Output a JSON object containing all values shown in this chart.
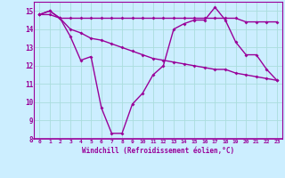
{
  "line1_x": [
    0,
    1,
    2,
    3,
    4,
    5,
    6,
    7,
    8,
    9,
    10,
    11,
    12,
    13,
    14,
    15,
    16,
    17,
    18,
    19,
    20,
    21,
    22,
    23
  ],
  "line1_y": [
    14.8,
    15.0,
    14.6,
    14.6,
    14.6,
    14.6,
    14.6,
    14.6,
    14.6,
    14.6,
    14.6,
    14.6,
    14.6,
    14.6,
    14.6,
    14.6,
    14.6,
    14.6,
    14.6,
    14.6,
    14.4,
    14.4,
    14.4,
    14.4
  ],
  "line2_x": [
    0,
    1,
    2,
    3,
    4,
    5,
    6,
    7,
    8,
    9,
    10,
    11,
    12,
    13,
    14,
    15,
    16,
    17,
    18,
    19,
    20,
    21,
    22,
    23
  ],
  "line2_y": [
    14.8,
    14.8,
    14.6,
    14.0,
    13.8,
    13.5,
    13.4,
    13.2,
    13.0,
    12.8,
    12.6,
    12.4,
    12.3,
    12.2,
    12.1,
    12.0,
    11.9,
    11.8,
    11.8,
    11.6,
    11.5,
    11.4,
    11.3,
    11.2
  ],
  "line3_x": [
    0,
    1,
    2,
    3,
    4,
    5,
    6,
    7,
    8,
    9,
    10,
    11,
    12,
    13,
    14,
    15,
    16,
    17,
    18,
    19,
    20,
    21,
    22,
    23
  ],
  "line3_y": [
    14.8,
    15.0,
    14.6,
    13.6,
    12.3,
    12.5,
    9.7,
    8.3,
    8.3,
    9.9,
    10.5,
    11.5,
    12.0,
    14.0,
    14.3,
    14.5,
    14.5,
    15.2,
    14.5,
    13.3,
    12.6,
    12.6,
    11.8,
    11.2
  ],
  "color": "#990099",
  "bg_color": "#cceeff",
  "grid_color": "#aadddd",
  "xlabel": "Windchill (Refroidissement éolien,°C)",
  "xlim_min": -0.5,
  "xlim_max": 23.5,
  "ylim_min": 8,
  "ylim_max": 15.5,
  "yticks": [
    8,
    9,
    10,
    11,
    12,
    13,
    14,
    15
  ],
  "xticks": [
    0,
    1,
    2,
    3,
    4,
    5,
    6,
    7,
    8,
    9,
    10,
    11,
    12,
    13,
    14,
    15,
    16,
    17,
    18,
    19,
    20,
    21,
    22,
    23
  ],
  "marker": "D",
  "markersize": 2.0,
  "linewidth": 1.0
}
